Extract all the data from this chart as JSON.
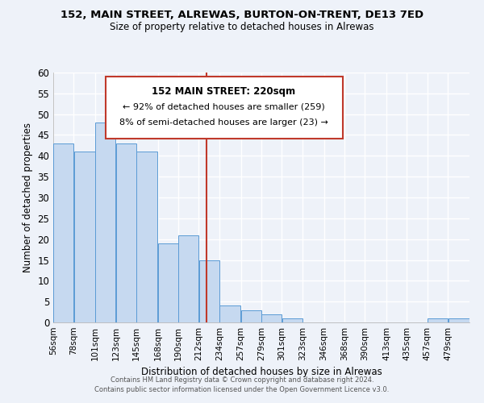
{
  "title": "152, MAIN STREET, ALREWAS, BURTON-ON-TRENT, DE13 7ED",
  "subtitle": "Size of property relative to detached houses in Alrewas",
  "xlabel": "Distribution of detached houses by size in Alrewas",
  "ylabel": "Number of detached properties",
  "bar_edges": [
    56,
    78,
    101,
    123,
    145,
    168,
    190,
    212,
    234,
    257,
    279,
    301,
    323,
    346,
    368,
    390,
    413,
    435,
    457,
    479,
    502
  ],
  "bar_heights": [
    43,
    41,
    48,
    43,
    41,
    19,
    21,
    15,
    4,
    3,
    2,
    1,
    0,
    0,
    0,
    0,
    0,
    0,
    1,
    1
  ],
  "bar_color": "#c6d9f0",
  "bar_edgecolor": "#5b9bd5",
  "ylim": [
    0,
    60
  ],
  "yticks": [
    0,
    5,
    10,
    15,
    20,
    25,
    30,
    35,
    40,
    45,
    50,
    55,
    60
  ],
  "vline_x": 220,
  "vline_color": "#c0392b",
  "annotation_box_title": "152 MAIN STREET: 220sqm",
  "annotation_line1": "← 92% of detached houses are smaller (259)",
  "annotation_line2": "8% of semi-detached houses are larger (23) →",
  "annotation_box_color": "#c0392b",
  "footer_line1": "Contains HM Land Registry data © Crown copyright and database right 2024.",
  "footer_line2": "Contains public sector information licensed under the Open Government Licence v3.0.",
  "background_color": "#eef2f9",
  "grid_color": "#ffffff"
}
